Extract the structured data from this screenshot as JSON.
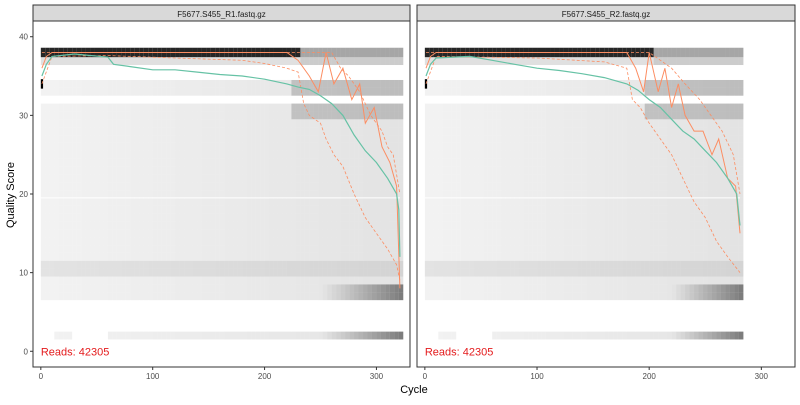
{
  "chart_data": {
    "type": "heatmap",
    "xlabel": "Cycle",
    "ylabel": "Quality Score",
    "xlim": [
      -7,
      330
    ],
    "ylim": [
      -2,
      42
    ],
    "x_ticks": [
      0,
      100,
      200,
      300
    ],
    "y_ticks": [
      0,
      10,
      20,
      30,
      40
    ],
    "grid": false,
    "colors": {
      "mean_line": "#66c2a5",
      "quartile_lines": "#fc8d62",
      "reads_text": "#e41a1c",
      "strip_fill": "#d9d9d9",
      "panel_border": "#333333"
    },
    "panels": [
      {
        "strip_label": "F5677.S455_R1.fastq.gz",
        "reads_label": "Reads:  42305",
        "cycles": 321,
        "mean": [
          [
            1,
            35
          ],
          [
            5,
            36.5
          ],
          [
            10,
            37.5
          ],
          [
            30,
            37.8
          ],
          [
            60,
            37.4
          ],
          [
            65,
            36.5
          ],
          [
            80,
            36.2
          ],
          [
            100,
            35.8
          ],
          [
            120,
            35.8
          ],
          [
            140,
            35.5
          ],
          [
            160,
            35.2
          ],
          [
            180,
            35
          ],
          [
            200,
            34.6
          ],
          [
            220,
            34
          ],
          [
            230,
            33.6
          ],
          [
            240,
            33.3
          ],
          [
            250,
            32.5
          ],
          [
            260,
            31.5
          ],
          [
            270,
            30
          ],
          [
            280,
            27.5
          ],
          [
            290,
            25.5
          ],
          [
            300,
            24
          ],
          [
            310,
            22
          ],
          [
            318,
            20
          ],
          [
            320,
            18
          ],
          [
            321,
            12
          ]
        ],
        "median": [
          [
            1,
            36
          ],
          [
            5,
            37.5
          ],
          [
            10,
            38
          ],
          [
            220,
            38
          ],
          [
            230,
            37
          ],
          [
            240,
            35
          ],
          [
            248,
            33
          ],
          [
            255,
            38
          ],
          [
            262,
            34
          ],
          [
            270,
            36
          ],
          [
            278,
            32
          ],
          [
            285,
            34
          ],
          [
            290,
            29
          ],
          [
            298,
            31
          ],
          [
            305,
            26
          ],
          [
            312,
            24
          ],
          [
            318,
            21
          ],
          [
            321,
            8
          ]
        ],
        "q25": [
          [
            1,
            34
          ],
          [
            10,
            37.5
          ],
          [
            60,
            37.6
          ],
          [
            120,
            37.3
          ],
          [
            180,
            37
          ],
          [
            200,
            36.6
          ],
          [
            220,
            36
          ],
          [
            230,
            35.5
          ],
          [
            235,
            31.5
          ],
          [
            240,
            30
          ],
          [
            250,
            29
          ],
          [
            255,
            27
          ],
          [
            262,
            25
          ],
          [
            270,
            23.5
          ],
          [
            280,
            20
          ],
          [
            290,
            17
          ],
          [
            300,
            15
          ],
          [
            310,
            13
          ],
          [
            318,
            11
          ],
          [
            321,
            9
          ]
        ],
        "q75": [
          [
            1,
            38
          ],
          [
            220,
            38
          ],
          [
            250,
            38
          ],
          [
            260,
            38
          ],
          [
            268,
            36
          ],
          [
            275,
            35
          ],
          [
            285,
            33
          ],
          [
            295,
            30
          ],
          [
            305,
            28
          ],
          [
            310,
            26
          ],
          [
            315,
            25
          ],
          [
            321,
            20
          ]
        ]
      },
      {
        "strip_label": "F5677.S455_R2.fastq.gz",
        "reads_label": "Reads:  42305",
        "cycles": 281,
        "mean": [
          [
            1,
            35
          ],
          [
            5,
            36.5
          ],
          [
            10,
            37.3
          ],
          [
            40,
            37.5
          ],
          [
            60,
            37
          ],
          [
            80,
            36.5
          ],
          [
            100,
            36
          ],
          [
            120,
            35.7
          ],
          [
            140,
            35.3
          ],
          [
            160,
            34.8
          ],
          [
            180,
            34
          ],
          [
            190,
            33.2
          ],
          [
            200,
            32
          ],
          [
            210,
            31
          ],
          [
            220,
            29.5
          ],
          [
            230,
            28
          ],
          [
            240,
            27
          ],
          [
            250,
            25.5
          ],
          [
            260,
            24
          ],
          [
            270,
            22
          ],
          [
            278,
            20
          ],
          [
            281,
            16
          ]
        ],
        "median": [
          [
            1,
            36
          ],
          [
            5,
            37.5
          ],
          [
            10,
            38
          ],
          [
            180,
            38
          ],
          [
            188,
            36
          ],
          [
            195,
            33
          ],
          [
            200,
            38
          ],
          [
            208,
            33
          ],
          [
            214,
            36
          ],
          [
            220,
            31
          ],
          [
            226,
            34
          ],
          [
            232,
            30
          ],
          [
            240,
            28
          ],
          [
            248,
            28
          ],
          [
            256,
            25
          ],
          [
            262,
            27
          ],
          [
            270,
            22
          ],
          [
            277,
            21
          ],
          [
            281,
            15
          ]
        ],
        "q25": [
          [
            1,
            34
          ],
          [
            10,
            37.5
          ],
          [
            100,
            37.3
          ],
          [
            160,
            36.8
          ],
          [
            180,
            36
          ],
          [
            185,
            32
          ],
          [
            192,
            31
          ],
          [
            200,
            29
          ],
          [
            210,
            27
          ],
          [
            220,
            25
          ],
          [
            230,
            22
          ],
          [
            240,
            19
          ],
          [
            250,
            17
          ],
          [
            260,
            14
          ],
          [
            270,
            12
          ],
          [
            281,
            10
          ]
        ],
        "q75": [
          [
            1,
            38
          ],
          [
            180,
            38
          ],
          [
            200,
            38
          ],
          [
            210,
            37
          ],
          [
            220,
            36
          ],
          [
            232,
            34
          ],
          [
            245,
            32
          ],
          [
            255,
            30
          ],
          [
            265,
            28
          ],
          [
            275,
            25
          ],
          [
            281,
            20
          ]
        ]
      }
    ]
  }
}
